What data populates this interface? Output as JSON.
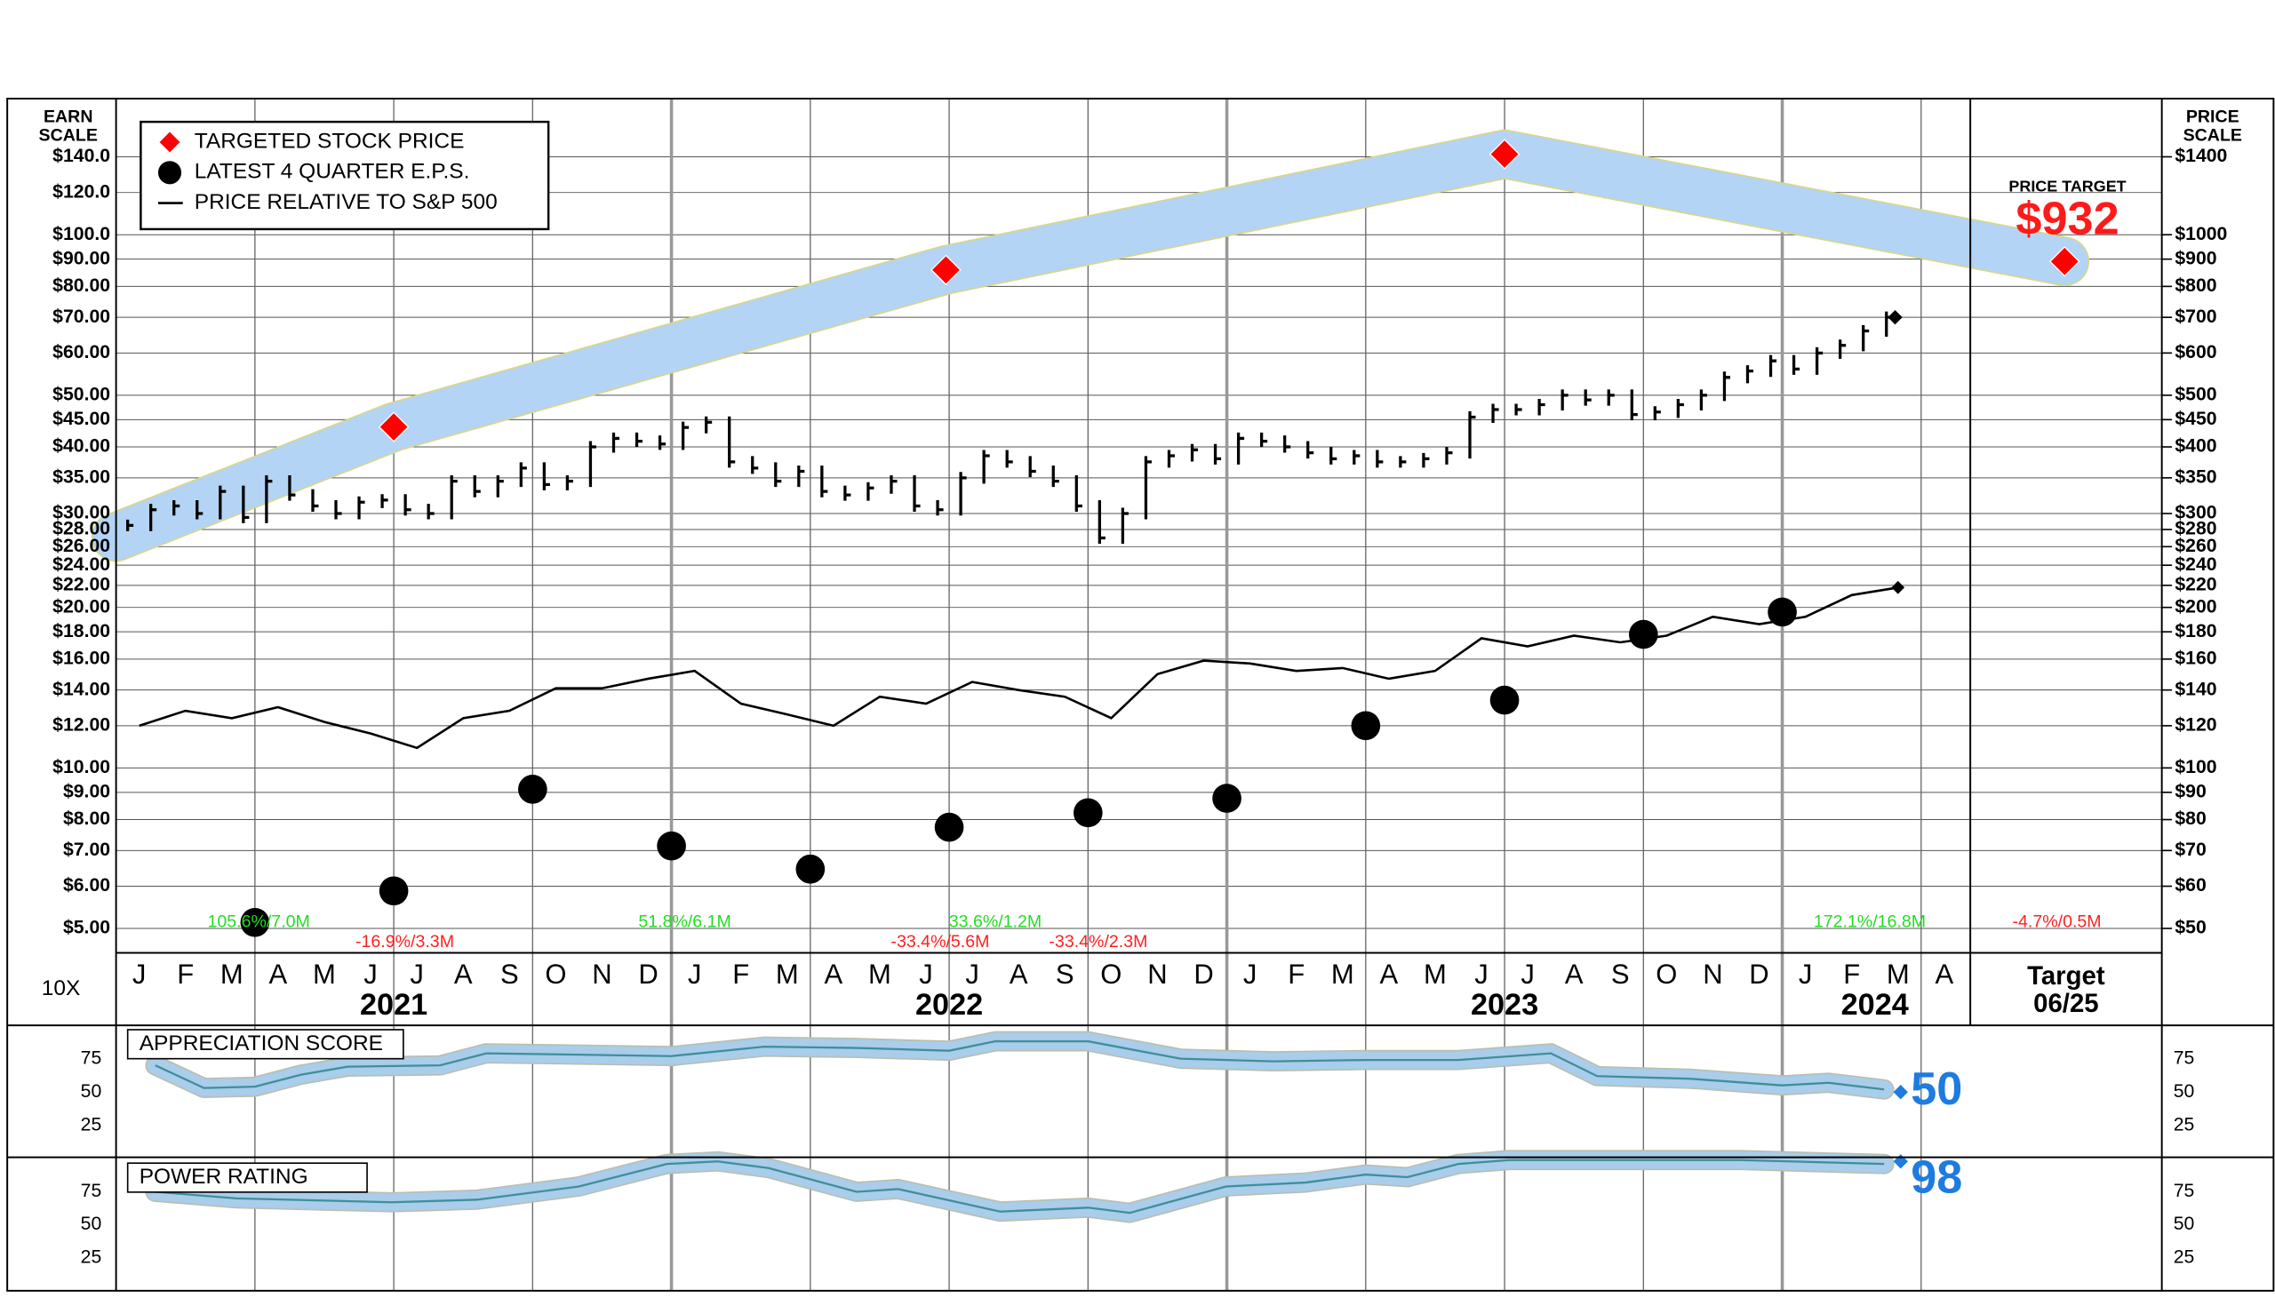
{
  "chart_data": {
    "type": "line",
    "log_scale": true,
    "grid": true,
    "legend": "top-left",
    "scale_labels": {
      "left": [
        "EARN",
        "SCALE"
      ],
      "right": [
        "PRICE",
        "SCALE"
      ]
    },
    "multiplier_label": "10X",
    "price_target": {
      "label": "PRICE TARGET",
      "value_label": "$932"
    },
    "xlim": [
      0,
      40
    ],
    "categories": [
      "J",
      "F",
      "M",
      "A",
      "M",
      "J",
      "J",
      "A",
      "S",
      "O",
      "N",
      "D",
      "J",
      "F",
      "M",
      "A",
      "M",
      "J",
      "J",
      "A",
      "S",
      "O",
      "N",
      "D",
      "J",
      "F",
      "M",
      "A",
      "M",
      "J",
      "J",
      "A",
      "S",
      "O",
      "N",
      "D",
      "J",
      "F",
      "M",
      "A"
    ],
    "years": [
      "2021",
      "2022",
      "2023",
      "2024"
    ],
    "target_labels": [
      "Target",
      "06/25"
    ],
    "ylim": [
      4.5,
      180
    ],
    "yticks": [
      {
        "value": 5,
        "label": "$5.00"
      },
      {
        "value": 6,
        "label": "$6.00"
      },
      {
        "value": 7,
        "label": "$7.00"
      },
      {
        "value": 8,
        "label": "$8.00"
      },
      {
        "value": 9,
        "label": "$9.00"
      },
      {
        "value": 10,
        "label": "$10.00"
      },
      {
        "value": 12,
        "label": "$12.00"
      },
      {
        "value": 14,
        "label": "$14.00"
      },
      {
        "value": 16,
        "label": "$16.00"
      },
      {
        "value": 18,
        "label": "$18.00"
      },
      {
        "value": 20,
        "label": "$20.00"
      },
      {
        "value": 22,
        "label": "$22.00"
      },
      {
        "value": 24,
        "label": "$24.00"
      },
      {
        "value": 26,
        "label": "$26.00"
      },
      {
        "value": 28,
        "label": "$28.00"
      },
      {
        "value": 30,
        "label": "$30.00"
      },
      {
        "value": 35,
        "label": "$35.00"
      },
      {
        "value": 40,
        "label": "$40.00"
      },
      {
        "value": 45,
        "label": "$45.00"
      },
      {
        "value": 50,
        "label": "$50.00"
      },
      {
        "value": 60,
        "label": "$60.00"
      },
      {
        "value": 70,
        "label": "$70.00"
      },
      {
        "value": 80,
        "label": "$80.00"
      },
      {
        "value": 90,
        "label": "$90.00"
      },
      {
        "value": 100,
        "label": "$100.0"
      },
      {
        "value": 120,
        "label": "$120.0"
      },
      {
        "value": 140,
        "label": "$140.0"
      }
    ],
    "y2lim": [
      45,
      1800
    ],
    "y2ticks": [
      {
        "value": 50,
        "label": "$50"
      },
      {
        "value": 60,
        "label": "$60"
      },
      {
        "value": 70,
        "label": "$70"
      },
      {
        "value": 80,
        "label": "$80"
      },
      {
        "value": 90,
        "label": "$90"
      },
      {
        "value": 100,
        "label": "$100"
      },
      {
        "value": 120,
        "label": "$120"
      },
      {
        "value": 140,
        "label": "$140"
      },
      {
        "value": 160,
        "label": "$160"
      },
      {
        "value": 180,
        "label": "$180"
      },
      {
        "value": 200,
        "label": "$200"
      },
      {
        "value": 220,
        "label": "$220"
      },
      {
        "value": 240,
        "label": "$240"
      },
      {
        "value": 260,
        "label": "$260"
      },
      {
        "value": 280,
        "label": "$280"
      },
      {
        "value": 300,
        "label": "$300"
      },
      {
        "value": 350,
        "label": "$350"
      },
      {
        "value": 400,
        "label": "$400"
      },
      {
        "value": 450,
        "label": "$450"
      },
      {
        "value": 500,
        "label": "$500"
      },
      {
        "value": 600,
        "label": "$600"
      },
      {
        "value": 700,
        "label": "$700"
      },
      {
        "value": 800,
        "label": "$800"
      },
      {
        "value": 900,
        "label": "$900"
      },
      {
        "value": 1000,
        "label": "$1000"
      },
      {
        "value": 1400,
        "label": "$1400"
      }
    ],
    "annotations": [
      {
        "text": "105.6%/7.0M",
        "color": "#22dd22"
      },
      {
        "text": "-16.9%/3.3M",
        "color": "#ff2020"
      },
      {
        "text": "51.8%/6.1M",
        "color": "#22dd22"
      },
      {
        "text": "-33.4%/5.6M",
        "color": "#ff2020"
      },
      {
        "text": "33.6%/1.2M",
        "color": "#22dd22"
      },
      {
        "text": "-33.4%/2.3M",
        "color": "#ff2020"
      },
      {
        "text": "172.1%/16.8M",
        "color": "#22dd22"
      },
      {
        "text": "-4.7%/0.5M",
        "color": "#ff2020"
      }
    ],
    "target_band": {
      "color": "#b3d4f5",
      "axis": "y2",
      "x": [
        0,
        6,
        17.93,
        30,
        42.1
      ],
      "values": [
        271,
        436,
        859,
        1416,
        891
      ]
    },
    "price_bars": {
      "color": "#000000",
      "axis": "y2",
      "x": [
        0.25,
        0.75,
        1.25,
        1.75,
        2.25,
        2.75,
        3.25,
        3.75,
        4.25,
        4.75,
        5.25,
        5.75,
        6.25,
        6.75,
        7.25,
        7.75,
        8.25,
        8.75,
        9.25,
        9.75,
        10.25,
        10.75,
        11.25,
        11.75,
        12.25,
        12.75,
        13.25,
        13.75,
        14.25,
        14.75,
        15.25,
        15.75,
        16.25,
        16.75,
        17.25,
        17.75,
        18.25,
        18.75,
        19.25,
        19.75,
        20.25,
        20.75,
        21.25,
        21.75,
        22.25,
        22.75,
        23.25,
        23.75,
        24.25,
        24.75,
        25.25,
        25.75,
        26.25,
        26.75,
        27.25,
        27.75,
        28.25,
        28.75,
        29.25,
        29.75,
        30.25,
        30.75,
        31.25,
        31.75,
        32.25,
        32.75,
        33.25,
        33.75,
        34.25,
        34.75,
        35.25,
        35.75,
        36.25,
        36.75,
        37.25,
        37.75,
        38.25
      ],
      "values": [
        285,
        305,
        310,
        300,
        330,
        295,
        345,
        325,
        310,
        300,
        315,
        318,
        305,
        300,
        345,
        330,
        345,
        365,
        340,
        345,
        400,
        415,
        410,
        405,
        435,
        445,
        375,
        365,
        345,
        360,
        330,
        325,
        335,
        345,
        310,
        305,
        350,
        385,
        375,
        360,
        345,
        310,
        270,
        300,
        375,
        385,
        395,
        380,
        415,
        410,
        400,
        390,
        380,
        385,
        375,
        375,
        380,
        390,
        455,
        470,
        470,
        480,
        500,
        490,
        500,
        460,
        465,
        480,
        500,
        540,
        555,
        580,
        560,
        600,
        620,
        660,
        700
      ]
    },
    "series": [
      {
        "name": "TARGETED STOCK PRICE",
        "color": "#ff0000",
        "marker": "diamond",
        "axis": "y2",
        "x": [
          6,
          17.93,
          30,
          42.1
        ],
        "values": [
          436,
          859,
          1416,
          891
        ]
      },
      {
        "name": "LATEST 4 QUARTER E.P.S.",
        "color": "#000000",
        "marker": "circle",
        "x": [
          3,
          6,
          9,
          12,
          15,
          18,
          21,
          24,
          27,
          30,
          33,
          36
        ],
        "values": [
          5.13,
          5.88,
          9.12,
          7.14,
          6.46,
          7.74,
          8.24,
          8.77,
          12.0,
          13.4,
          17.8,
          19.6
        ]
      },
      {
        "name": "PRICE RELATIVE TO S&P 500",
        "color": "#000000",
        "marker": "line",
        "axis": "y2",
        "x": [
          0.5,
          1.5,
          2.5,
          3.5,
          4.5,
          5.5,
          6.5,
          7.5,
          8.5,
          9.5,
          10.5,
          11.5,
          12.5,
          13.5,
          14.5,
          15.5,
          16.5,
          17.5,
          18.5,
          19.5,
          20.5,
          21.5,
          22.5,
          23.5,
          24.5,
          25.5,
          26.5,
          27.5,
          28.5,
          29.5,
          30.5,
          31.5,
          32.5,
          33.5,
          34.5,
          35.5,
          36.5,
          37.5,
          38.5
        ],
        "values": [
          120,
          128,
          124,
          130,
          122,
          116,
          109,
          124,
          128,
          141,
          141,
          147,
          152,
          132,
          126,
          120,
          136,
          132,
          145,
          140,
          136,
          124,
          150,
          159,
          157,
          152,
          154,
          147,
          152,
          175,
          169,
          177,
          172,
          177,
          192,
          186,
          192,
          211,
          218
        ]
      }
    ],
    "panels": [
      {
        "title": "APPRECIATION SCORE",
        "ylim": [
          0,
          100
        ],
        "yticks": [
          25,
          50,
          75
        ],
        "color": "#3f8f9a",
        "band_color": "#a9cdea",
        "current_color": "#1e7be0",
        "x": [
          0.85,
          1.9,
          3,
          4,
          5,
          7,
          8,
          10,
          12,
          14,
          16,
          18,
          19,
          21,
          23,
          25,
          27,
          29,
          31,
          32,
          34,
          36,
          37,
          38.2
        ],
        "values": [
          70,
          53,
          54,
          63,
          69,
          70,
          79,
          78,
          77,
          84,
          83,
          81,
          88,
          88,
          75,
          73,
          74,
          74,
          79,
          62,
          60,
          55,
          57,
          52
        ],
        "current": 50
      },
      {
        "title": "POWER RATING",
        "ylim": [
          0,
          100
        ],
        "yticks": [
          25,
          50,
          75
        ],
        "color": "#3f8f9a",
        "band_color": "#a9cdea",
        "current_color": "#1e7be0",
        "x": [
          0.85,
          2.6,
          5.96,
          7.8,
          10,
          11.9,
          13,
          14.1,
          16,
          16.9,
          19.1,
          21,
          21.9,
          23.98,
          25.7,
          27,
          27.9,
          29,
          30.1,
          32,
          35.1,
          38.2
        ],
        "values": [
          75,
          70,
          67,
          69,
          79,
          96,
          98,
          93,
          75,
          77,
          60,
          63,
          59,
          79,
          82,
          88,
          86,
          96,
          99,
          99,
          99,
          96
        ],
        "current": 98
      }
    ]
  }
}
